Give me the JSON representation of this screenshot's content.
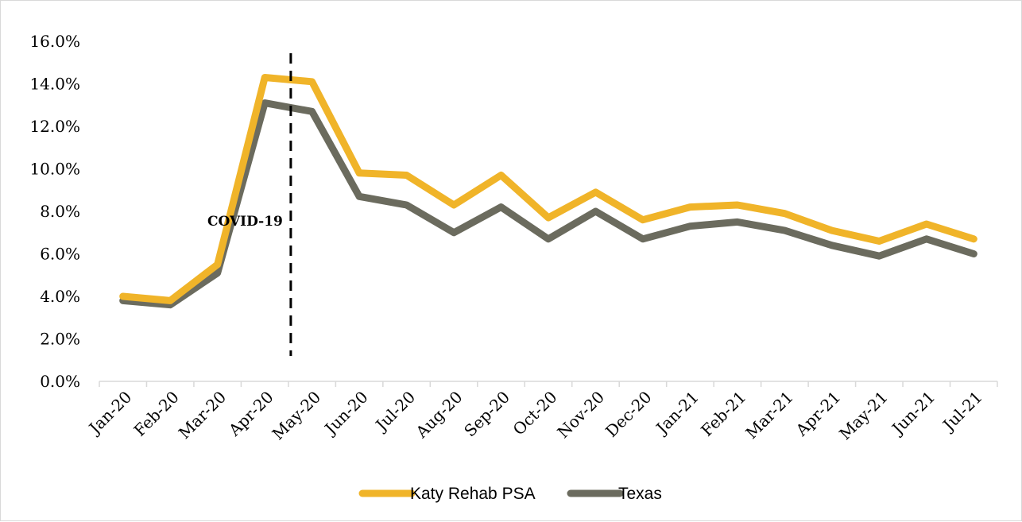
{
  "chart_data": {
    "type": "line",
    "title": "",
    "xlabel": "",
    "ylabel": "",
    "categories": [
      "Jan-20",
      "Feb-20",
      "Mar-20",
      "Apr-20",
      "May-20",
      "Jun-20",
      "Jul-20",
      "Aug-20",
      "Sep-20",
      "Oct-20",
      "Nov-20",
      "Dec-20",
      "Jan-21",
      "Feb-21",
      "Mar-21",
      "Apr-21",
      "May-21",
      "Jun-21",
      "Jul-21"
    ],
    "y_ticks": [
      "0.0%",
      "2.0%",
      "4.0%",
      "6.0%",
      "8.0%",
      "10.0%",
      "12.0%",
      "14.0%",
      "16.0%"
    ],
    "ylim": [
      0,
      16
    ],
    "y_unit": "percent",
    "grid": false,
    "legend_position": "bottom",
    "series": [
      {
        "name": "Katy Rehab PSA",
        "color": "#F0B429",
        "values": [
          4.0,
          3.8,
          5.5,
          14.3,
          14.1,
          9.8,
          9.7,
          8.3,
          9.7,
          7.7,
          8.9,
          7.6,
          8.2,
          8.3,
          7.9,
          7.1,
          6.6,
          7.4,
          6.7
        ]
      },
      {
        "name": "Texas",
        "color": "#6B6B5E",
        "values": [
          3.8,
          3.6,
          5.1,
          13.1,
          12.7,
          8.7,
          8.3,
          7.0,
          8.2,
          6.7,
          8.0,
          6.7,
          7.3,
          7.5,
          7.1,
          6.4,
          5.9,
          6.7,
          6.0
        ]
      }
    ],
    "annotations": [
      {
        "text": "COVID-19",
        "style": "dashed-vertical-line",
        "x_category": "May-20"
      }
    ]
  }
}
